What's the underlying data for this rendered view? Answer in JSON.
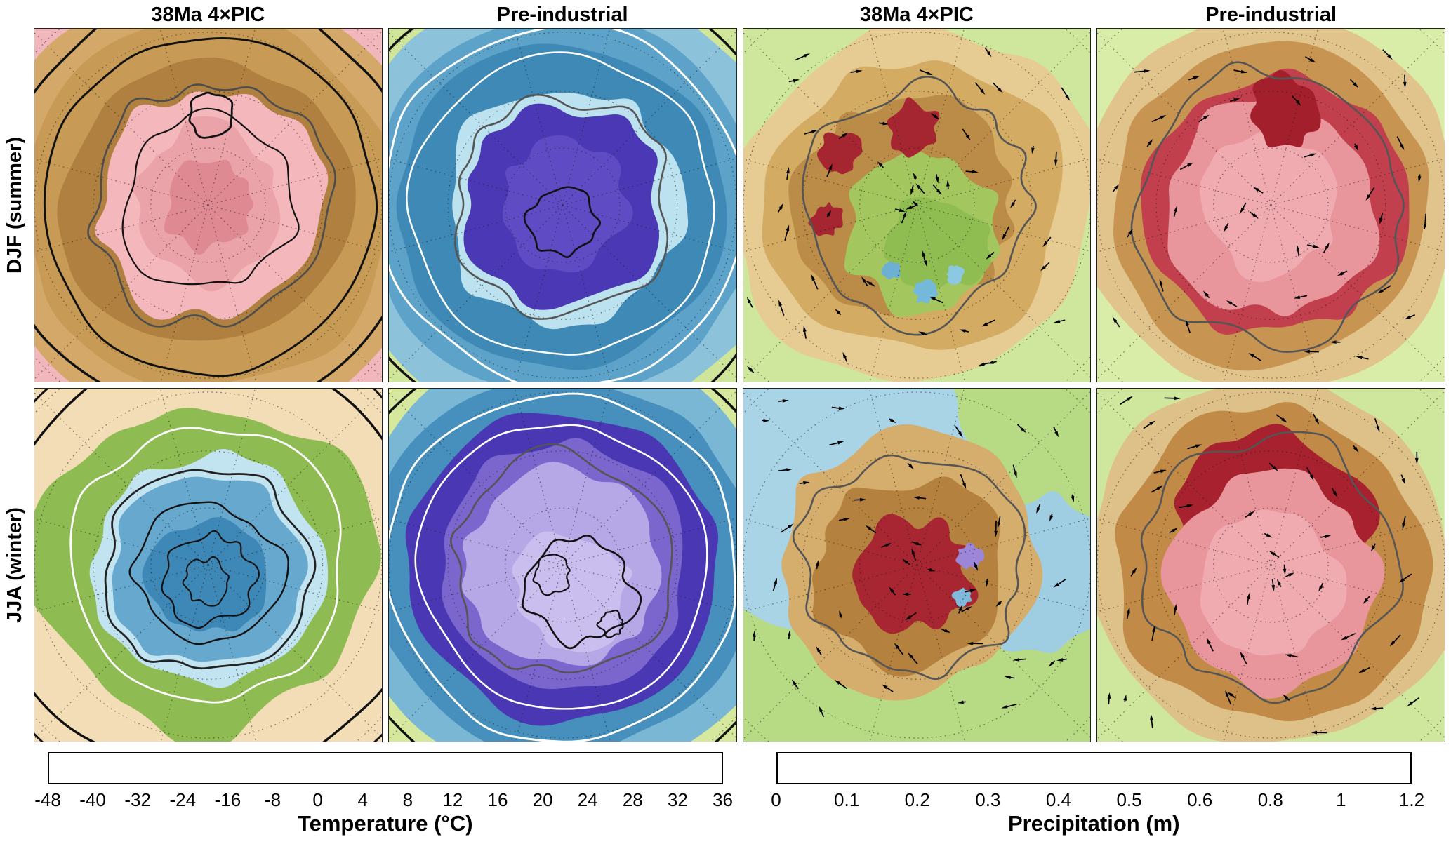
{
  "figure": {
    "column_titles": [
      "38Ma 4×PIC",
      "Pre-industrial",
      "38Ma 4×PIC",
      "Pre-industrial"
    ],
    "row_labels": [
      "DJF (summer)",
      "JJA (winter)"
    ]
  },
  "colorbars": {
    "temperature": {
      "title": "Temperature (°C)",
      "tick_labels": [
        "-48",
        "-40",
        "-32",
        "-24",
        "-16",
        "-8",
        "0",
        "4",
        "8",
        "12",
        "16",
        "20",
        "24",
        "28",
        "32",
        "36"
      ],
      "colors": [
        "#d9cdf0",
        "#c3a9e6",
        "#aa89da",
        "#8f68cd",
        "#6f4bc0",
        "#4d2fa8",
        "#c8e7f3",
        "#a9d9eb",
        "#8ac8e0",
        "#65b0d3",
        "#4295c2",
        "#2a7aab",
        "#dceeb2",
        "#c4e28c",
        "#a3d168",
        "#7cbb4d",
        "#ecd9a0",
        "#c08a45",
        "#f4bcc0",
        "#e2848e",
        "#c03a49"
      ],
      "weights": [
        1,
        1,
        1,
        1,
        1,
        1,
        1,
        1,
        1,
        1,
        1,
        1,
        2,
        2,
        2,
        2,
        2,
        2,
        2,
        2,
        2
      ]
    },
    "precipitation": {
      "title": "Precipitation (m)",
      "tick_labels": [
        "0",
        "0.1",
        "0.2",
        "0.3",
        "0.4",
        "0.5",
        "0.6",
        "0.8",
        "1",
        "1.2"
      ],
      "colors": [
        "#f8d4d8",
        "#f0a3ab",
        "#dd6874",
        "#bb3343",
        "#f1e1bd",
        "#e2c68f",
        "#cda55c",
        "#b2803b",
        "#dcedb0",
        "#c2e089",
        "#9ed064",
        "#78b748",
        "#93cbdf",
        "#64afd2",
        "#3a8cba",
        "#26719f",
        "#c7b6e9",
        "#a288d8"
      ],
      "weights": [
        1,
        1,
        1,
        1,
        1,
        1,
        1,
        1,
        1,
        1,
        1,
        1,
        1,
        1,
        1,
        1,
        1,
        1
      ]
    }
  },
  "chart_data": {
    "type": "heatmap",
    "description": "Eight polar-stereographic map panels over Antarctica comparing a 38Ma 4×PIC simulation with a Pre-industrial simulation, for austral summer (DJF) and winter (JJA). Left two columns: surface temperature with contour overlays. Right two columns: precipitation with surface wind vectors.",
    "rows": [
      "DJF (summer)",
      "JJA (winter)"
    ],
    "columns": [
      "38Ma 4×PIC",
      "Pre-industrial",
      "38Ma 4×PIC",
      "Pre-industrial"
    ],
    "scales": [
      {
        "variable": "Temperature",
        "unit": "°C",
        "ticks": [
          -48,
          -40,
          -32,
          -24,
          -16,
          -8,
          0,
          4,
          8,
          12,
          16,
          20,
          24,
          28,
          32,
          36
        ],
        "range": [
          -48,
          36
        ],
        "note": "8°C color steps below 0, 4°C above"
      },
      {
        "variable": "Precipitation",
        "unit": "m",
        "ticks": [
          0,
          0.1,
          0.2,
          0.3,
          0.4,
          0.5,
          0.6,
          0.8,
          1,
          1.2
        ],
        "range": [
          0,
          1.2
        ]
      }
    ],
    "legend_position": "bottom",
    "grid": "dotted polar graticule on every panel"
  },
  "panels": [
    {
      "name": "djf-38ma-temperature",
      "bg": "#f2b7bd",
      "fills": [
        {
          "r": 1.3,
          "wob": 0.04,
          "seed": 11,
          "fill": "#d3a869"
        },
        {
          "r": 1.08,
          "wob": 0.05,
          "seed": 12,
          "fill": "#c79a55"
        },
        {
          "r": 0.85,
          "wob": 0.08,
          "seed": 13,
          "fill": "#b08040"
        },
        {
          "r": 0.66,
          "wob": 0.13,
          "seed": 14,
          "n": 26,
          "fill": "#f3b7bc"
        },
        {
          "r": 0.45,
          "wob": 0.17,
          "seed": 15,
          "n": 24,
          "fill": "#eba3aa"
        },
        {
          "r": 0.26,
          "wob": 0.22,
          "seed": 16,
          "fill": "#df8a93"
        }
      ],
      "contours": [
        {
          "r": 1.22,
          "wob": 0.03,
          "seed": 21,
          "stroke": "#111",
          "sw": 3.5
        },
        {
          "r": 0.98,
          "wob": 0.04,
          "seed": 22,
          "stroke": "#111",
          "sw": 3
        },
        {
          "r": 0.7,
          "wob": 0.13,
          "seed": 14,
          "n": 26,
          "stroke": "#4d4d4d",
          "sw": 2.6
        },
        {
          "r": 0.13,
          "dx": 0.02,
          "dy": -0.52,
          "wob": 0.12,
          "seed": 23,
          "stroke": "#111",
          "sw": 2.8
        },
        {
          "r": 0.5,
          "wob": 0.15,
          "seed": 24,
          "stroke": "#111",
          "sw": 2.2
        }
      ]
    },
    {
      "name": "djf-preindustrial-temperature",
      "bg": "#cee59a",
      "fills": [
        {
          "r": 1.3,
          "wob": 0.03,
          "seed": 31,
          "fill": "#8cc3da"
        },
        {
          "r": 1.12,
          "wob": 0.04,
          "seed": 32,
          "fill": "#5da3c9"
        },
        {
          "r": 0.95,
          "wob": 0.05,
          "seed": 33,
          "fill": "#3e89b6"
        },
        {
          "r": 0.7,
          "wob": 0.11,
          "seed": 34,
          "n": 26,
          "fill": "#bce1ef"
        },
        {
          "r": 0.58,
          "wob": 0.13,
          "seed": 35,
          "n": 26,
          "fill": "#4a38b4"
        },
        {
          "r": 0.36,
          "wob": 0.16,
          "seed": 36,
          "fill": "#5f4cc4"
        }
      ],
      "contours": [
        {
          "r": 1.34,
          "wob": 0.02,
          "seed": 44,
          "stroke": "#111",
          "sw": 3.5
        },
        {
          "r": 1.05,
          "wob": 0.04,
          "seed": 41,
          "stroke": "#ffffff",
          "sw": 3
        },
        {
          "r": 0.88,
          "wob": 0.05,
          "seed": 42,
          "stroke": "#ffffff",
          "sw": 2.6
        },
        {
          "r": 0.63,
          "wob": 0.13,
          "seed": 35,
          "n": 26,
          "stroke": "#555",
          "sw": 2.6
        },
        {
          "r": 0.2,
          "dy": 0.1,
          "wob": 0.15,
          "seed": 43,
          "stroke": "#111",
          "sw": 2.6
        }
      ]
    },
    {
      "name": "djf-38ma-precipitation",
      "bg": "#cfe79d",
      "fills": [
        {
          "r": 1.05,
          "wob": 0.08,
          "seed": 51,
          "fill": "#e6cb92"
        },
        {
          "r": 0.86,
          "wob": 0.1,
          "seed": 52,
          "fill": "#d3ab62"
        },
        {
          "r": 0.62,
          "dx": -0.06,
          "wob": 0.14,
          "seed": 53,
          "n": 26,
          "fill": "#bb8c48"
        },
        {
          "r": 0.44,
          "dx": 0.04,
          "dy": 0.16,
          "wob": 0.2,
          "seed": 54,
          "n": 26,
          "fill": "#a3c75e"
        },
        {
          "r": 0.3,
          "dx": 0.1,
          "dy": 0.22,
          "wob": 0.25,
          "seed": 55,
          "fill": "#8fbd52"
        },
        {
          "r": 0.15,
          "dx": -0.03,
          "dy": -0.45,
          "wob": 0.3,
          "seed": 56,
          "fill": "#a52531"
        },
        {
          "r": 0.12,
          "dx": -0.45,
          "dy": -0.3,
          "wob": 0.3,
          "seed": 57,
          "fill": "#a52531"
        },
        {
          "r": 0.09,
          "dx": -0.52,
          "dy": 0.08,
          "wob": 0.3,
          "seed": 58,
          "fill": "#a52531"
        },
        {
          "r": 0.07,
          "dx": 0.05,
          "dy": 0.5,
          "wob": 0.3,
          "seed": 59,
          "fill": "#74b9da"
        },
        {
          "r": 0.05,
          "dx": 0.22,
          "dy": 0.4,
          "wob": 0.3,
          "seed": 60,
          "fill": "#8cc8e2"
        },
        {
          "r": 0.05,
          "dx": -0.15,
          "dy": 0.38,
          "wob": 0.3,
          "seed": 61,
          "fill": "#6db0d4"
        }
      ],
      "contours": [
        {
          "r": 0.67,
          "wob": 0.14,
          "seed": 62,
          "n": 28,
          "stroke": "#555",
          "sw": 2.6
        }
      ],
      "arrows": {
        "seed": 201,
        "swirl": 0.35,
        "rings": [
          0.55,
          0.8,
          1.05,
          1.3
        ],
        "inner": 14
      }
    },
    {
      "name": "djf-preindustrial-precipitation",
      "bg": "#d9eda9",
      "fills": [
        {
          "r": 1.1,
          "wob": 0.05,
          "seed": 71,
          "fill": "#e0c48c"
        },
        {
          "r": 0.94,
          "wob": 0.07,
          "seed": 72,
          "fill": "#c79551"
        },
        {
          "r": 0.76,
          "wob": 0.1,
          "seed": 73,
          "n": 26,
          "fill": "#c23f4d"
        },
        {
          "r": 0.62,
          "wob": 0.12,
          "seed": 74,
          "n": 26,
          "fill": "#e8959c"
        },
        {
          "r": 0.4,
          "wob": 0.15,
          "seed": 75,
          "fill": "#f0abb1"
        },
        {
          "r": 0.2,
          "dx": 0.08,
          "dy": -0.55,
          "wob": 0.25,
          "seed": 76,
          "fill": "#a31f2b"
        }
      ],
      "contours": [
        {
          "r": 0.8,
          "wob": 0.11,
          "seed": 77,
          "n": 28,
          "stroke": "#555",
          "sw": 2.6
        }
      ],
      "arrows": {
        "seed": 202,
        "swirl": 0.4,
        "rings": [
          0.6,
          0.85,
          1.1
        ],
        "inner": 8
      }
    },
    {
      "name": "jja-38ma-temperature",
      "bg": "#f3ddb6",
      "fills": [
        {
          "r": 0.98,
          "dx": -0.04,
          "wob": 0.12,
          "seed": 81,
          "n": 26,
          "fill": "#8fbb53"
        },
        {
          "r": 0.66,
          "dy": 0.02,
          "wob": 0.1,
          "seed": 82,
          "n": 26,
          "fill": "#c2e3f0"
        },
        {
          "r": 0.56,
          "dy": 0.03,
          "wob": 0.12,
          "seed": 83,
          "n": 26,
          "fill": "#67a8ce"
        },
        {
          "r": 0.34,
          "dy": 0.06,
          "wob": 0.16,
          "seed": 84,
          "fill": "#3d88b6"
        }
      ],
      "contours": [
        {
          "r": 1.24,
          "wob": 0.03,
          "seed": 85,
          "stroke": "#111",
          "sw": 3.5
        },
        {
          "r": 1.4,
          "wob": 0.02,
          "seed": 86,
          "stroke": "#111",
          "sw": 3
        },
        {
          "r": 0.8,
          "wob": 0.09,
          "seed": 87,
          "stroke": "#ffffff",
          "sw": 2.8
        },
        {
          "r": 0.6,
          "dy": 0.03,
          "wob": 0.12,
          "seed": 83,
          "n": 26,
          "stroke": "#222",
          "sw": 2.8
        },
        {
          "r": 0.42,
          "dy": 0.05,
          "wob": 0.15,
          "seed": 88,
          "stroke": "#111",
          "sw": 2.4
        },
        {
          "r": 0.26,
          "dy": 0.08,
          "wob": 0.18,
          "seed": 89,
          "stroke": "#111",
          "sw": 2.2
        },
        {
          "r": 0.13,
          "dy": 0.1,
          "wob": 0.2,
          "seed": 90,
          "stroke": "#111",
          "sw": 2
        }
      ]
    },
    {
      "name": "jja-preindustrial-temperature",
      "bg": "#d5e89e",
      "fills": [
        {
          "r": 1.28,
          "wob": 0.03,
          "seed": 91,
          "fill": "#79b7d5"
        },
        {
          "r": 1.1,
          "wob": 0.04,
          "seed": 92,
          "fill": "#4790bd"
        },
        {
          "r": 0.9,
          "wob": 0.06,
          "seed": 93,
          "n": 26,
          "fill": "#4a37b3"
        },
        {
          "r": 0.72,
          "wob": 0.08,
          "seed": 94,
          "n": 26,
          "fill": "#7a66cc"
        },
        {
          "r": 0.56,
          "wob": 0.11,
          "seed": 95,
          "n": 26,
          "fill": "#b6a7e6"
        },
        {
          "r": 0.34,
          "dx": 0.06,
          "dy": 0.14,
          "wob": 0.2,
          "seed": 96,
          "fill": "#cabeee"
        }
      ],
      "contours": [
        {
          "r": 1.36,
          "wob": 0.02,
          "seed": 107,
          "stroke": "#111",
          "sw": 3.5
        },
        {
          "r": 1.02,
          "wob": 0.04,
          "seed": 101,
          "stroke": "#ffffff",
          "sw": 3
        },
        {
          "r": 0.82,
          "wob": 0.06,
          "seed": 102,
          "stroke": "#ffffff",
          "sw": 2.6
        },
        {
          "r": 0.64,
          "wob": 0.12,
          "seed": 108,
          "n": 28,
          "stroke": "#555",
          "sw": 2.6
        },
        {
          "r": 0.3,
          "dx": 0.1,
          "dy": 0.16,
          "wob": 0.2,
          "seed": 104,
          "stroke": "#111",
          "sw": 2.6
        },
        {
          "r": 0.1,
          "dx": -0.06,
          "dy": 0.06,
          "wob": 0.25,
          "seed": 105,
          "stroke": "#111",
          "sw": 2.2
        },
        {
          "r": 0.07,
          "dx": 0.28,
          "dy": 0.34,
          "wob": 0.25,
          "seed": 106,
          "stroke": "#111",
          "sw": 2.2
        }
      ]
    },
    {
      "name": "jja-38ma-precipitation",
      "bg": "#b7da84",
      "fills": [
        {
          "r": 0.95,
          "dx": -0.6,
          "dy": -0.55,
          "wob": 0.1,
          "seed": 111,
          "n": 24,
          "fill": "#a9d4e6"
        },
        {
          "r": 0.45,
          "dx": 0.72,
          "dy": 0.05,
          "wob": 0.15,
          "seed": 112,
          "fill": "#9fcde2"
        },
        {
          "r": 0.74,
          "dx": -0.05,
          "wob": 0.13,
          "seed": 113,
          "n": 28,
          "fill": "#d5ad6c"
        },
        {
          "r": 0.54,
          "dx": -0.06,
          "dy": 0.04,
          "wob": 0.16,
          "seed": 114,
          "n": 26,
          "fill": "#b5813e"
        },
        {
          "r": 0.32,
          "dx": -0.02,
          "dy": 0.06,
          "wob": 0.26,
          "seed": 115,
          "n": 26,
          "fill": "#a82532"
        },
        {
          "r": 0.07,
          "dx": 0.3,
          "dy": -0.05,
          "wob": 0.3,
          "seed": 116,
          "fill": "#9c86d8"
        },
        {
          "r": 0.05,
          "dx": 0.26,
          "dy": 0.18,
          "wob": 0.3,
          "seed": 117,
          "fill": "#7fb9dc"
        }
      ],
      "contours": [
        {
          "r": 0.66,
          "dx": -0.02,
          "wob": 0.14,
          "seed": 118,
          "n": 28,
          "stroke": "#555",
          "sw": 2.6
        }
      ],
      "arrows": {
        "seed": 203,
        "swirl": 0.5,
        "rings": [
          0.55,
          0.8,
          1.05,
          1.3
        ],
        "inner": 16
      }
    },
    {
      "name": "jja-preindustrial-precipitation",
      "bg": "#cfe79d",
      "fills": [
        {
          "r": 1.08,
          "wob": 0.06,
          "seed": 121,
          "fill": "#ddc189"
        },
        {
          "r": 0.92,
          "wob": 0.08,
          "seed": 122,
          "n": 26,
          "fill": "#c18a46"
        },
        {
          "r": 0.58,
          "dy": -0.22,
          "wob": 0.16,
          "seed": 123,
          "n": 26,
          "fill": "#a8212e"
        },
        {
          "r": 0.62,
          "dy": 0.1,
          "wob": 0.12,
          "seed": 124,
          "n": 26,
          "fill": "#e8959c"
        },
        {
          "r": 0.4,
          "dy": 0.12,
          "wob": 0.15,
          "seed": 125,
          "fill": "#f0abb1"
        }
      ],
      "contours": [
        {
          "r": 0.74,
          "wob": 0.12,
          "seed": 126,
          "n": 28,
          "stroke": "#555",
          "sw": 2.6
        }
      ],
      "arrows": {
        "seed": 204,
        "swirl": 0.55,
        "rings": [
          0.6,
          0.85,
          1.1,
          1.3
        ],
        "inner": 10
      }
    }
  ]
}
